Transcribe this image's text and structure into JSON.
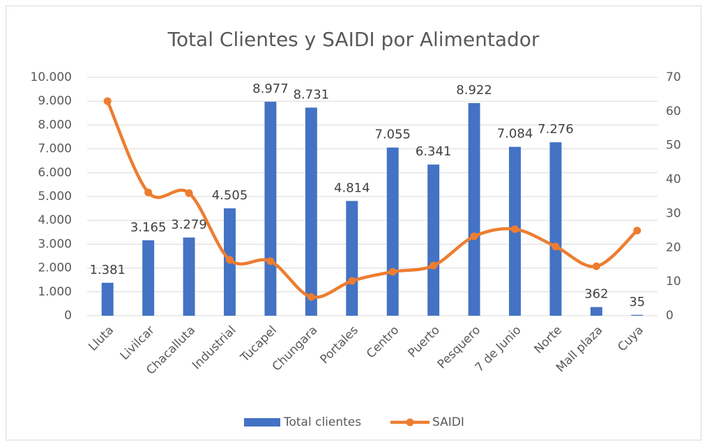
{
  "chart_data": {
    "type": "bar",
    "title": "Total Clientes y SAIDI por Alimentador",
    "categories": [
      "Lluta",
      "Livilcar",
      "Chacalluta",
      "Industrial",
      "Tucapel",
      "Chungara",
      "Portales",
      "Centro",
      "Puerto",
      "Pesquero",
      "7 de Junio",
      "Norte",
      "Mall plaza",
      "Cuya"
    ],
    "series": [
      {
        "name": "Total clientes",
        "color": "#4472c4",
        "values": [
          1381,
          3165,
          3279,
          4505,
          8977,
          8731,
          4814,
          7055,
          6341,
          8922,
          7084,
          7276,
          362,
          35
        ],
        "value_labels": [
          "1.381",
          "3.165",
          "3.279",
          "4.505",
          "8.977",
          "8.731",
          "4.814",
          "7.055",
          "6.341",
          "8.922",
          "7.084",
          "7.276",
          "362",
          "35"
        ]
      },
      {
        "name": "SAIDI",
        "color": "#ed7d31",
        "axis": "y2",
        "values": [
          63,
          36.2,
          36,
          16.4,
          16,
          5.5,
          10.2,
          12.9,
          14.7,
          23.3,
          25.4,
          20.3,
          14.5,
          25
        ]
      }
    ],
    "ylim": [
      0,
      10000
    ],
    "yticks": [
      0,
      {
        "value": 1000,
        "label": "1.000"
      },
      {
        "value": 2000,
        "label": "2.000"
      },
      {
        "value": 3000,
        "label": "3.000"
      },
      {
        "value": 4000,
        "label": "4.000"
      },
      {
        "value": 5000,
        "label": "5.000"
      },
      {
        "value": 6000,
        "label": "6.000"
      },
      {
        "value": 7000,
        "label": "7.000"
      },
      {
        "value": 8000,
        "label": "8.000"
      },
      {
        "value": 9000,
        "label": "9.000"
      },
      {
        "value": 10000,
        "label": "10.000"
      }
    ],
    "y2lim": [
      0,
      70
    ],
    "y2ticks": [
      0,
      10,
      20,
      30,
      40,
      50,
      60,
      70
    ],
    "grid": true,
    "legend": "bottom"
  }
}
